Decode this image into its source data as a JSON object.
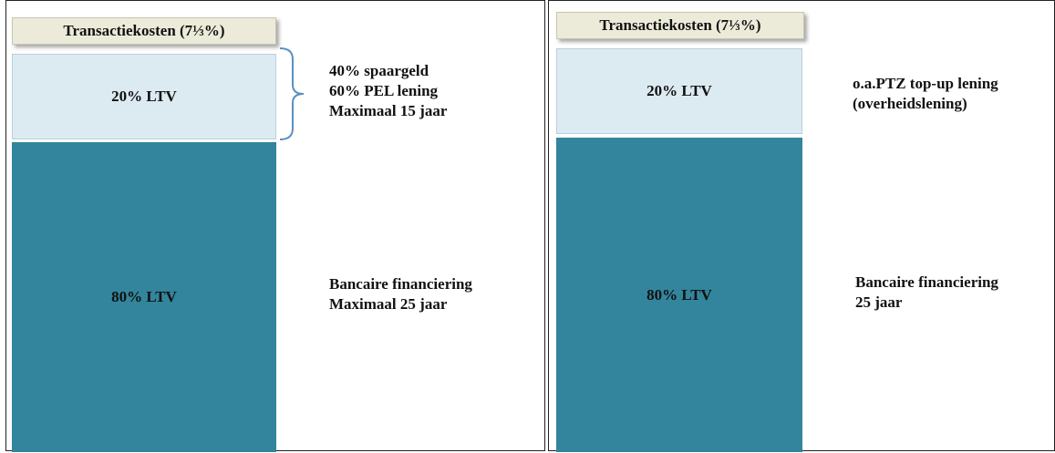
{
  "panels": [
    {
      "title": "Transactiekosten (7⅓%)",
      "top_segment": "20% LTV",
      "bottom_segment": "80% LTV",
      "top_note": [
        "40% spaargeld",
        "60% PEL lening",
        "Maximaal 15 jaar"
      ],
      "bottom_note": [
        "Bancaire financiering",
        "Maximaal 25 jaar"
      ]
    },
    {
      "title": "Transactiekosten (7⅓%)",
      "top_segment": "20% LTV",
      "bottom_segment": "80% LTV",
      "top_note": [
        "o.a.PTZ top-up lening",
        "(overheidslening)"
      ],
      "bottom_note": [
        "Bancaire financiering",
        "25 jaar"
      ]
    }
  ]
}
